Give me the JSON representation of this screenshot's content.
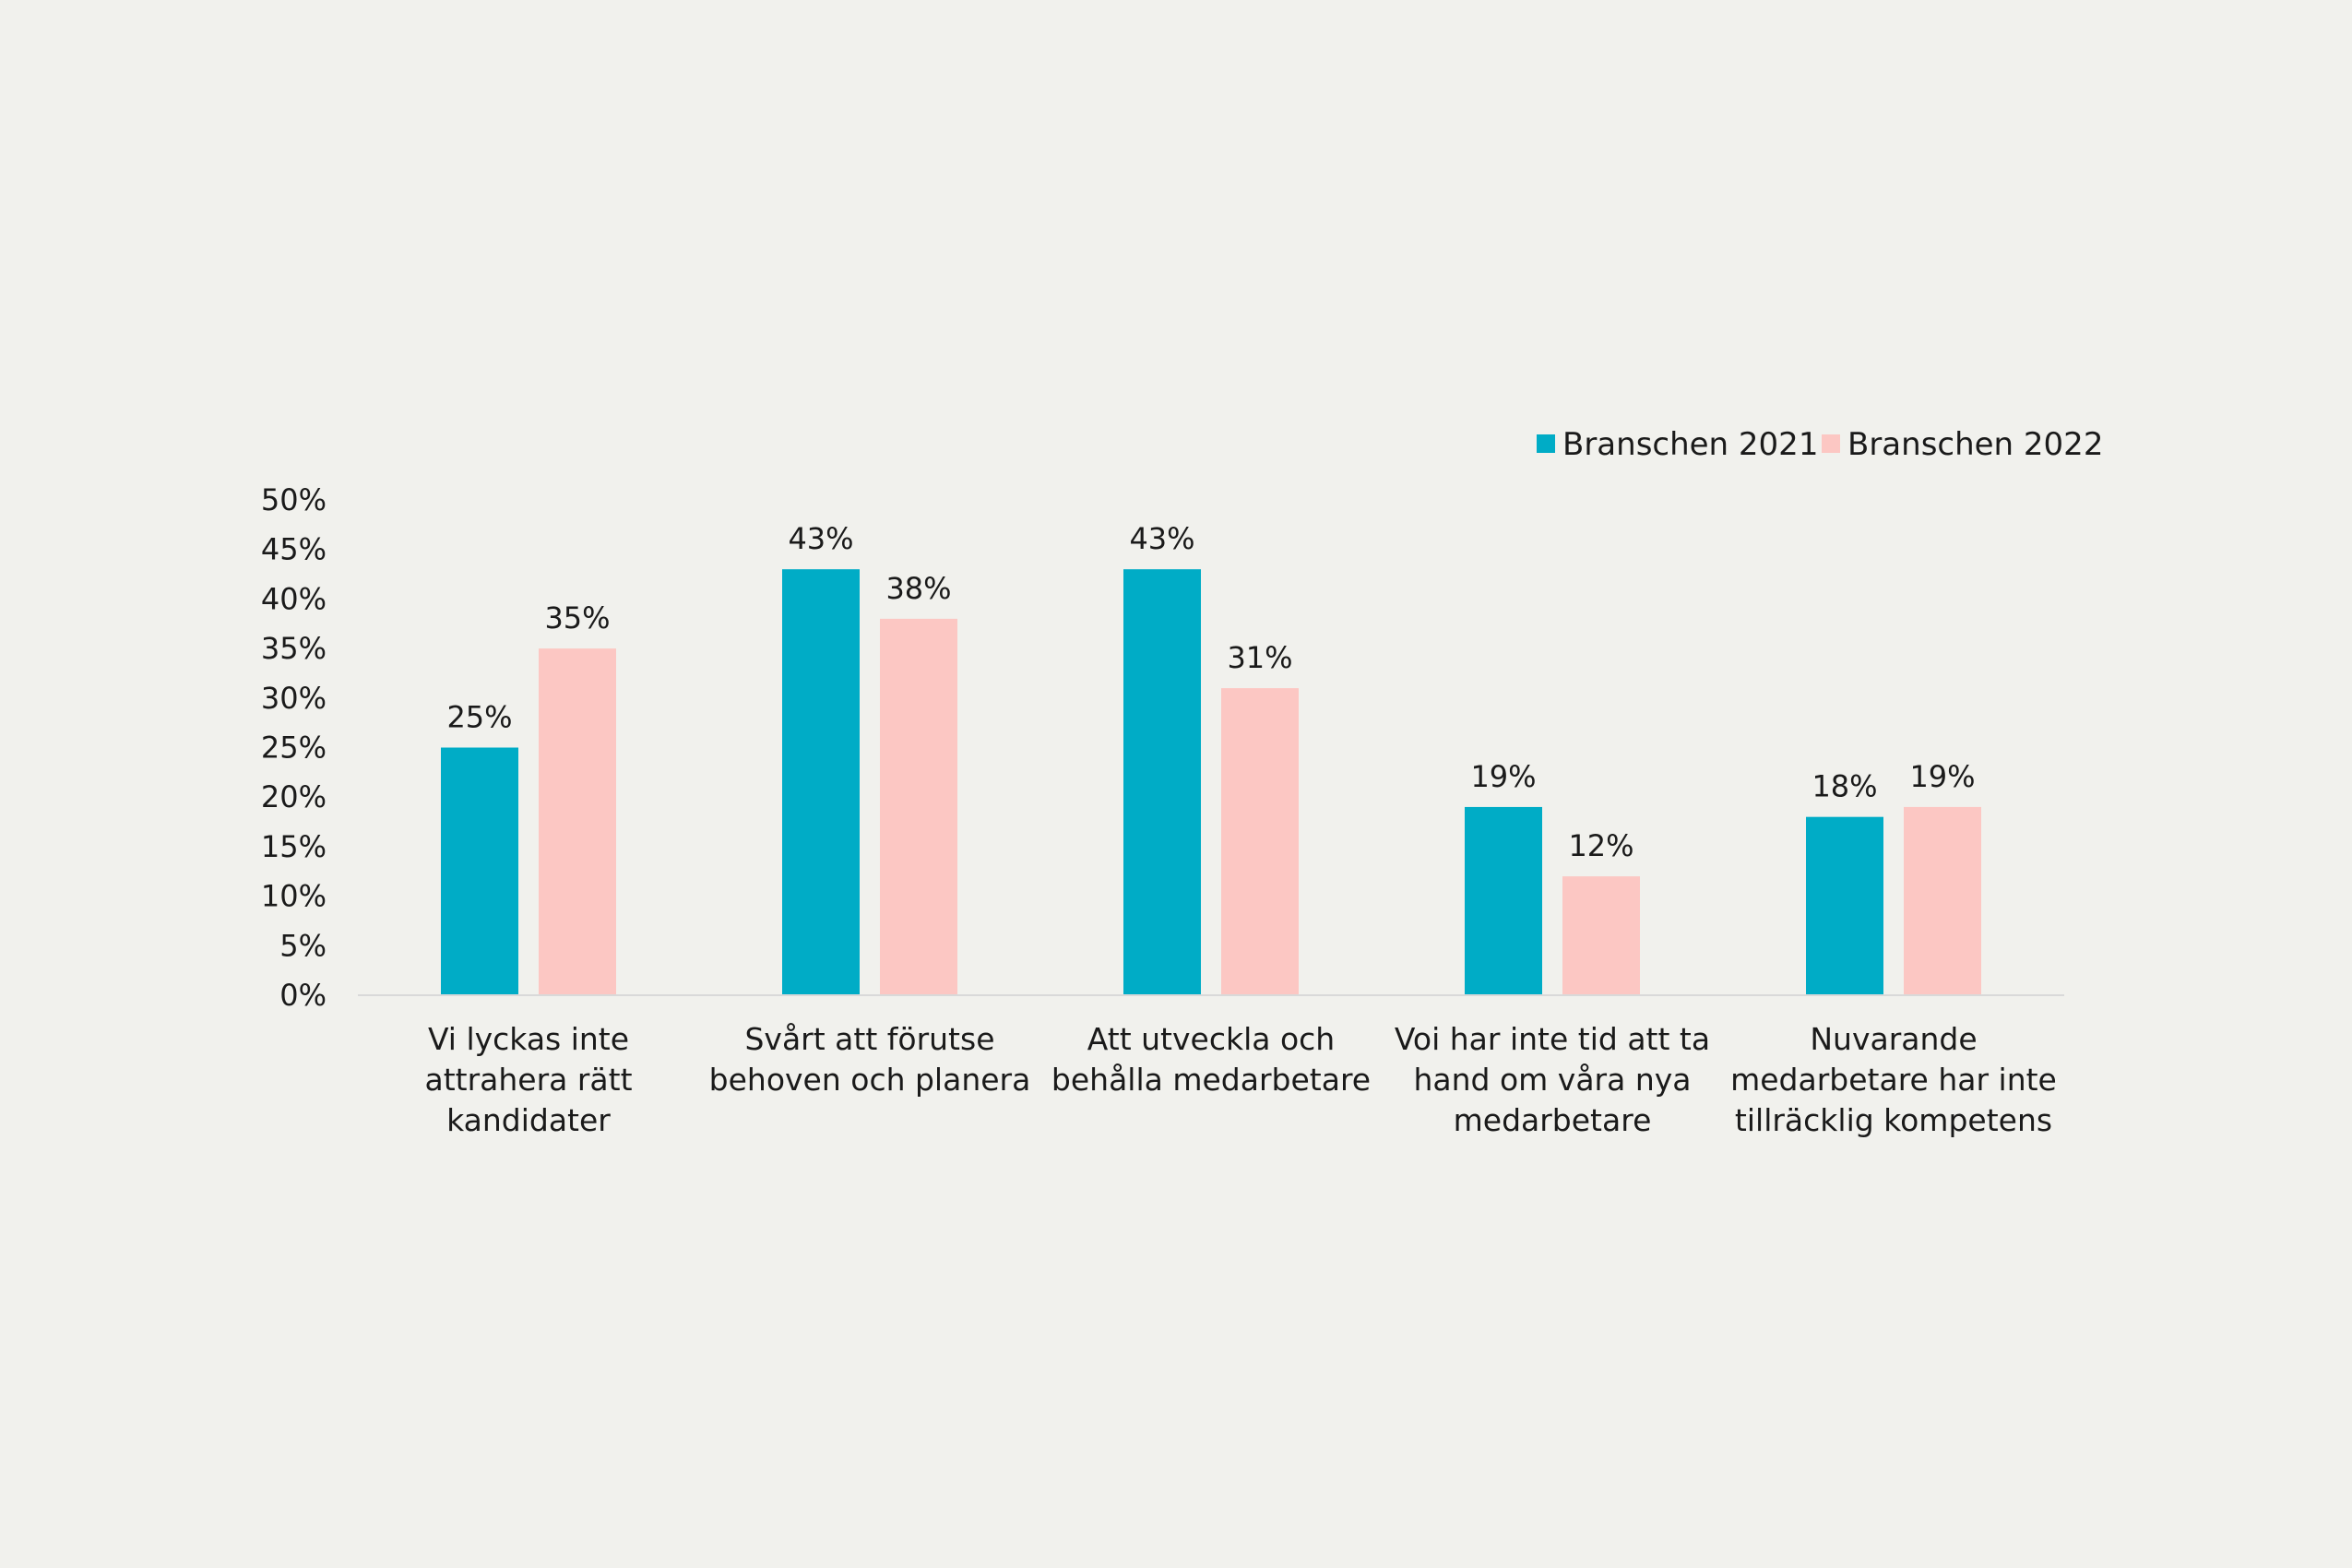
{
  "chart_data": {
    "type": "bar",
    "title": "",
    "xlabel": "",
    "ylabel": "",
    "ylim": [
      0,
      50
    ],
    "yticks": [
      0,
      5,
      10,
      15,
      20,
      25,
      30,
      35,
      40,
      45,
      50
    ],
    "tick_suffix": "%",
    "grid": false,
    "legend_position": "top-right",
    "categories": [
      [
        "Vi lyckas inte",
        "attrahera rätt",
        "kandidater"
      ],
      [
        "Svårt att förutse",
        "behoven och planera"
      ],
      [
        "Att utveckla och",
        "behålla medarbetare"
      ],
      [
        "Voi har inte tid att ta",
        "hand om våra nya",
        "medarbetare"
      ],
      [
        "Nuvarande",
        "medarbetare har inte",
        "tillräcklig kompetens"
      ]
    ],
    "series": [
      {
        "name": "Branschen 2021",
        "color": "#00acc6",
        "values": [
          25,
          43,
          43,
          19,
          18
        ],
        "labels": [
          "25%",
          "43%",
          "43%",
          "19%",
          "18%"
        ]
      },
      {
        "name": "Branschen 2022",
        "color": "#fcc7c3",
        "values": [
          35,
          38,
          31,
          12,
          19
        ],
        "labels": [
          "35%",
          "38%",
          "31%",
          "12%",
          "19%"
        ]
      }
    ],
    "axis_color": "#d9d9d9"
  }
}
